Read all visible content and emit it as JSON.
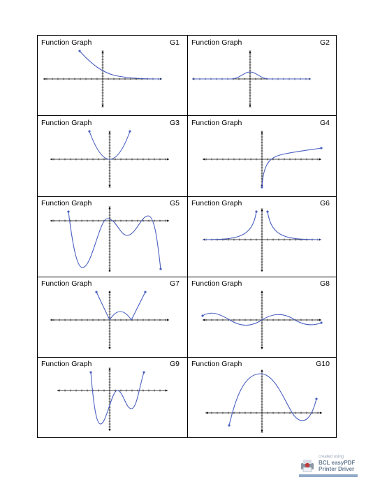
{
  "cells": [
    {
      "title": "Function Graph",
      "id": "G1",
      "curve": "exp-decay"
    },
    {
      "title": "Function Graph",
      "id": "G2",
      "curve": "bell"
    },
    {
      "title": "Function Graph",
      "id": "G3",
      "curve": "parabola"
    },
    {
      "title": "Function Graph",
      "id": "G4",
      "curve": "logarithm"
    },
    {
      "title": "Function Graph",
      "id": "G5",
      "curve": "quartic-m"
    },
    {
      "title": "Function Graph",
      "id": "G6",
      "curve": "reciprocal-square"
    },
    {
      "title": "Function Graph",
      "id": "G7",
      "curve": "abs-quadratic"
    },
    {
      "title": "Function Graph",
      "id": "G8",
      "curve": "damped-sine"
    },
    {
      "title": "Function Graph",
      "id": "G9",
      "curve": "quartic-w"
    },
    {
      "title": "Function Graph",
      "id": "G10",
      "curve": "cubic"
    }
  ],
  "watermark": {
    "line1": "created using",
    "line2": "BCL easyPDF",
    "line3": "Printer Driver"
  },
  "colors": {
    "curve": "#4a5fc1",
    "axis": "#000000",
    "border": "#000000"
  }
}
